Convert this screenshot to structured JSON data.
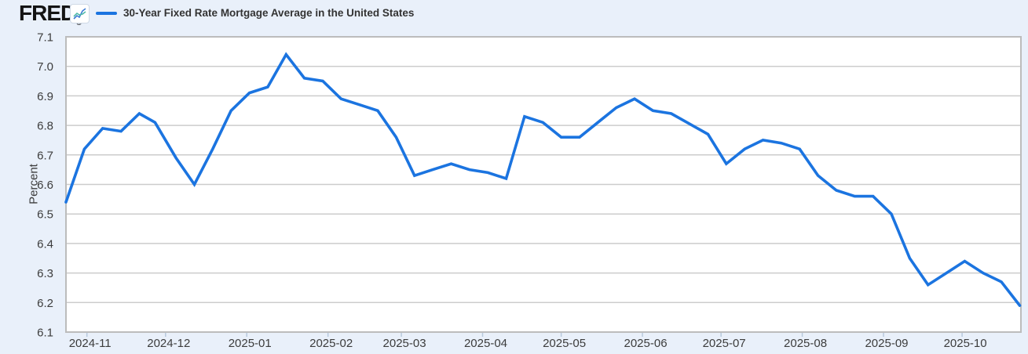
{
  "header": {
    "logo": "FRED",
    "registered_mark": "®",
    "legend_label": "30-Year Fixed Rate Mortgage Average in the United States"
  },
  "chart_data": {
    "type": "line",
    "title": "30-Year Fixed Rate Mortgage Average in the United States",
    "xlabel": "",
    "ylabel": "Percent",
    "ylim": [
      6.1,
      7.1
    ],
    "ytick_step": 0.1,
    "ytick_labels": [
      "7.1",
      "7.0",
      "6.9",
      "6.8",
      "6.7",
      "6.6",
      "6.5",
      "6.4",
      "6.3",
      "6.2",
      "6.1"
    ],
    "xtick_labels": [
      "2024-11",
      "2024-12",
      "2025-01",
      "2025-02",
      "2025-03",
      "2025-04",
      "2025-05",
      "2025-06",
      "2025-07",
      "2025-08",
      "2025-09",
      "2025-10"
    ],
    "grid": "horizontal",
    "legend_position": "top-left",
    "frequency": "weekly",
    "series": [
      {
        "name": "30-Year Fixed Rate Mortgage Average in the United States",
        "x": [
          "2024-10-24",
          "2024-10-31",
          "2024-11-07",
          "2024-11-14",
          "2024-11-21",
          "2024-11-27",
          "2024-12-05",
          "2024-12-12",
          "2024-12-19",
          "2024-12-26",
          "2025-01-02",
          "2025-01-09",
          "2025-01-16",
          "2025-01-23",
          "2025-01-30",
          "2025-02-06",
          "2025-02-13",
          "2025-02-20",
          "2025-02-27",
          "2025-03-06",
          "2025-03-13",
          "2025-03-20",
          "2025-03-27",
          "2025-04-03",
          "2025-04-10",
          "2025-04-17",
          "2025-04-24",
          "2025-05-01",
          "2025-05-08",
          "2025-05-15",
          "2025-05-22",
          "2025-05-29",
          "2025-06-05",
          "2025-06-12",
          "2025-06-18",
          "2025-06-26",
          "2025-07-03",
          "2025-07-10",
          "2025-07-17",
          "2025-07-24",
          "2025-07-31",
          "2025-08-07",
          "2025-08-14",
          "2025-08-21",
          "2025-08-28",
          "2025-09-04",
          "2025-09-11",
          "2025-09-18",
          "2025-09-25",
          "2025-10-02",
          "2025-10-09",
          "2025-10-16",
          "2025-10-23"
        ],
        "values": [
          6.54,
          6.72,
          6.79,
          6.78,
          6.84,
          6.81,
          6.69,
          6.6,
          6.72,
          6.85,
          6.91,
          6.93,
          7.04,
          6.96,
          6.95,
          6.89,
          6.87,
          6.85,
          6.76,
          6.63,
          6.65,
          6.67,
          6.65,
          6.64,
          6.62,
          6.83,
          6.81,
          6.76,
          6.76,
          6.81,
          6.86,
          6.89,
          6.85,
          6.84,
          6.81,
          6.77,
          6.67,
          6.72,
          6.75,
          6.74,
          6.72,
          6.63,
          6.58,
          6.56,
          6.56,
          6.5,
          6.35,
          6.26,
          6.3,
          6.34,
          6.3,
          6.27,
          6.19
        ]
      }
    ]
  },
  "colors": {
    "page_bg": "#e9f0fa",
    "plot_bg": "#ffffff",
    "grid": "#cccccc",
    "plot_border": "#bcbcbc",
    "line": "#1b74e0",
    "x_tick": "#b7c9dd",
    "axis_text": "#3c3c3c",
    "title_text": "#333333",
    "logo_text": "#141414",
    "icon_blue": "#3b7bd4",
    "icon_teal": "#4fb9a8"
  }
}
